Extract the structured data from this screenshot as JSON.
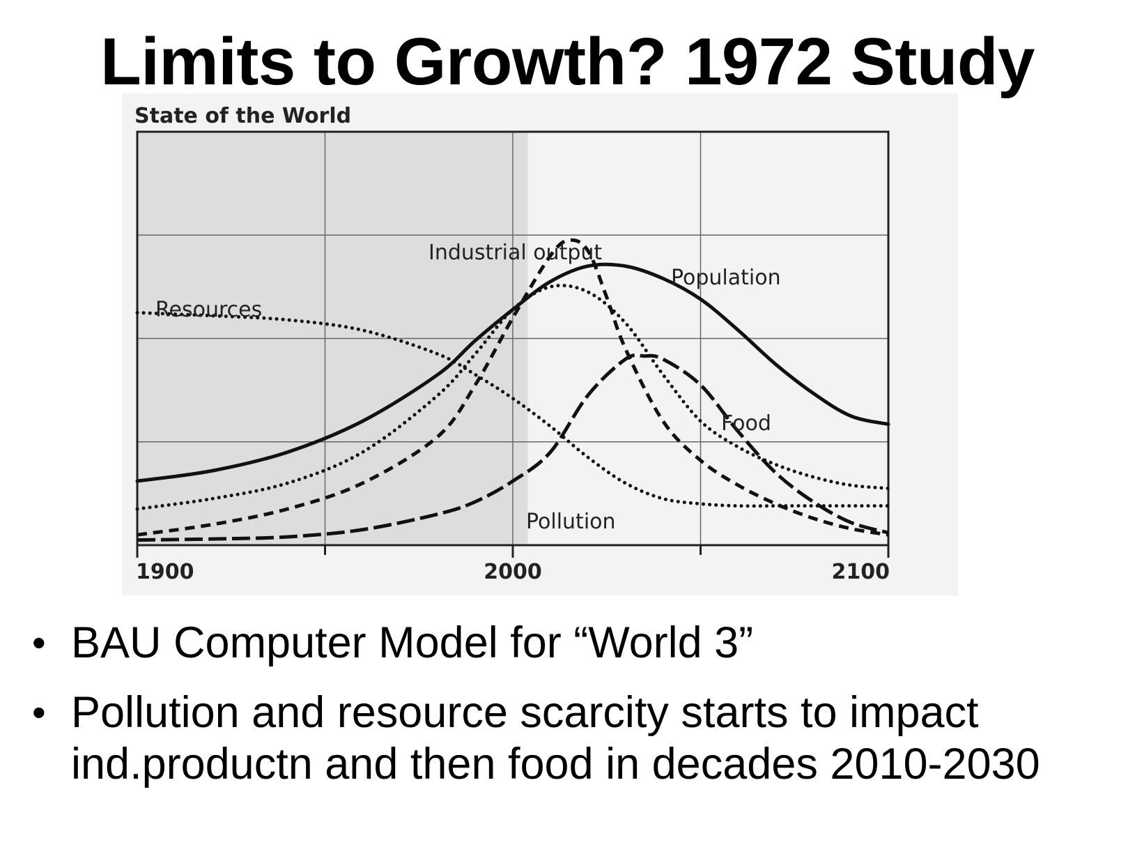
{
  "slide": {
    "title": "Limits to Growth? 1972 Study",
    "bullets": [
      "BAU Computer Model for “World 3”",
      "Pollution and resource scarcity starts to impact ind.productn and then food in decades 2010-2030"
    ]
  },
  "chart_data": {
    "type": "line",
    "title": "State of the World",
    "xlabel": "",
    "ylabel": "",
    "xlim": [
      1900,
      2100
    ],
    "ylim": [
      0,
      4
    ],
    "x_ticks": [
      1900,
      2000,
      2100
    ],
    "grid": true,
    "shaded_region": [
      1900,
      2004
    ],
    "series": [
      {
        "name": "Population",
        "style": "solid",
        "x": [
          1900,
          1920,
          1940,
          1960,
          1980,
          1990,
          2000,
          2010,
          2020,
          2030,
          2040,
          2050,
          2060,
          2070,
          2080,
          2090,
          2100
        ],
        "y": [
          0.62,
          0.72,
          0.9,
          1.2,
          1.65,
          1.98,
          2.28,
          2.55,
          2.7,
          2.7,
          2.58,
          2.38,
          2.08,
          1.75,
          1.47,
          1.25,
          1.17
        ]
      },
      {
        "name": "Industrial output",
        "style": "dashed",
        "x": [
          1900,
          1920,
          1940,
          1960,
          1980,
          1990,
          2000,
          2010,
          2015,
          2020,
          2025,
          2030,
          2040,
          2050,
          2060,
          2070,
          2080,
          2090,
          2100
        ],
        "y": [
          0.1,
          0.2,
          0.35,
          0.6,
          1.05,
          1.55,
          2.2,
          2.8,
          2.95,
          2.85,
          2.4,
          1.9,
          1.2,
          0.82,
          0.58,
          0.4,
          0.26,
          0.16,
          0.1
        ]
      },
      {
        "name": "Food",
        "style": "dotted",
        "x": [
          1900,
          1920,
          1940,
          1960,
          1980,
          1990,
          2000,
          2010,
          2020,
          2030,
          2040,
          2050,
          2060,
          2070,
          2080,
          2090,
          2100
        ],
        "y": [
          0.35,
          0.45,
          0.6,
          0.9,
          1.45,
          1.85,
          2.28,
          2.5,
          2.45,
          2.15,
          1.65,
          1.2,
          0.95,
          0.78,
          0.66,
          0.58,
          0.55
        ]
      },
      {
        "name": "Resources",
        "style": "dotted",
        "x": [
          1900,
          1920,
          1940,
          1960,
          1980,
          1990,
          2000,
          2010,
          2020,
          2030,
          2040,
          2050,
          2060,
          2070,
          2080,
          2090,
          2100
        ],
        "y": [
          2.25,
          2.22,
          2.18,
          2.08,
          1.85,
          1.65,
          1.42,
          1.15,
          0.85,
          0.6,
          0.45,
          0.4,
          0.38,
          0.38,
          0.38,
          0.38,
          0.38
        ]
      },
      {
        "name": "Pollution",
        "style": "long-dashed",
        "x": [
          1900,
          1920,
          1940,
          1960,
          1980,
          1990,
          2000,
          2010,
          2020,
          2030,
          2035,
          2040,
          2050,
          2060,
          2070,
          2080,
          2090,
          2100
        ],
        "y": [
          0.05,
          0.06,
          0.08,
          0.15,
          0.3,
          0.42,
          0.62,
          0.9,
          1.45,
          1.8,
          1.83,
          1.8,
          1.55,
          1.1,
          0.7,
          0.42,
          0.22,
          0.12
        ]
      }
    ]
  }
}
